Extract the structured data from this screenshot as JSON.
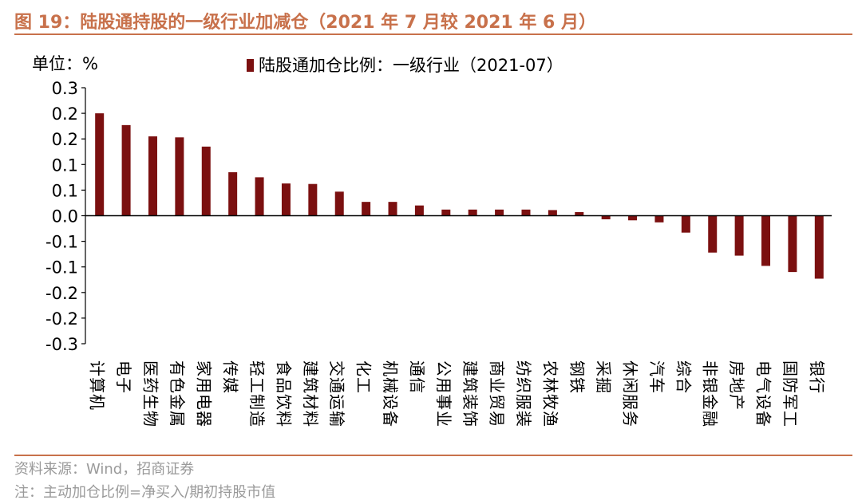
{
  "header": {
    "title": "图 19：陆股通持股的一级行业加减仓（2021 年 7 月较 2021 年 6 月）"
  },
  "footer": {
    "source": "资料来源：Wind，招商证券",
    "note": "注：主动加仓比例=净买入/期初持股市值"
  },
  "chart_data": {
    "type": "bar",
    "unit_label": "单位：%",
    "legend": [
      "陆股通加仓比例：一级行业（2021-07）"
    ],
    "legend_placement": "top",
    "ytick_labels": [
      "0.3",
      "0.2",
      "0.2",
      "0.1",
      "0.1",
      "0.0",
      "-0.1",
      "-0.1",
      "-0.2",
      "-0.2",
      "-0.3"
    ],
    "ylim": [
      -0.25,
      0.25
    ],
    "grid": false,
    "categories": [
      "计算机",
      "电子",
      "医药生物",
      "有色金属",
      "家用电器",
      "传媒",
      "轻工制造",
      "食品饮料",
      "建筑材料",
      "交通运输",
      "化工",
      "机械设备",
      "通信",
      "公用事业",
      "建筑装饰",
      "商业贸易",
      "纺织服装",
      "农林牧渔",
      "钢铁",
      "采掘",
      "休闲服务",
      "汽车",
      "综合",
      "非银金融",
      "房地产",
      "电气设备",
      "国防军工",
      "银行"
    ],
    "series": [
      {
        "name": "陆股通加仓比例：一级行业（2021-07）",
        "color": "#7b1010",
        "values": [
          0.2,
          0.177,
          0.155,
          0.153,
          0.135,
          0.085,
          0.075,
          0.063,
          0.062,
          0.047,
          0.027,
          0.027,
          0.02,
          0.012,
          0.012,
          0.012,
          0.012,
          0.011,
          0.007,
          -0.007,
          -0.009,
          -0.013,
          -0.033,
          -0.072,
          -0.078,
          -0.098,
          -0.11,
          -0.123
        ]
      }
    ]
  }
}
